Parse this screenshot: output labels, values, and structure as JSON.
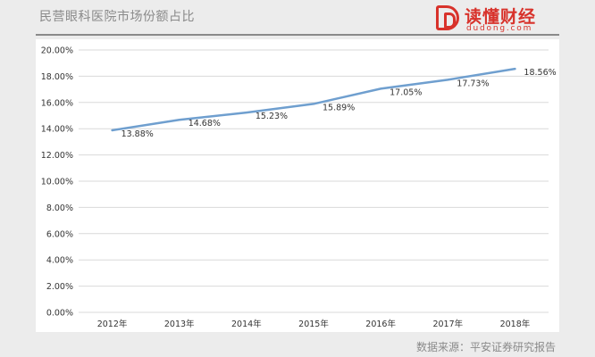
{
  "header": {
    "title": "民营眼科医院市场份额占比",
    "logo_name": "读懂财经",
    "logo_url": "dudong.com",
    "logo_icon": "d-logo-icon"
  },
  "source": "数据来源：平安证券研究报告",
  "colors": {
    "line": "#6f9fcf",
    "grid": "#d9d9d9",
    "brand": "#d8322b"
  },
  "chart_data": {
    "type": "line",
    "title": "民营眼科医院市场份额占比",
    "xlabel": "",
    "ylabel": "",
    "categories": [
      "2012年",
      "2013年",
      "2014年",
      "2015年",
      "2016年",
      "2017年",
      "2018年"
    ],
    "series": [
      {
        "values": [
          13.88,
          14.68,
          15.23,
          15.89,
          17.05,
          17.73,
          18.56
        ],
        "labels": [
          "13.88%",
          "14.68%",
          "15.23%",
          "15.89%",
          "17.05%",
          "17.73%",
          "18.56%"
        ]
      }
    ],
    "ylim": [
      0,
      20
    ],
    "yticks": [
      "0.00%",
      "2.00%",
      "4.00%",
      "6.00%",
      "8.00%",
      "10.00%",
      "12.00%",
      "14.00%",
      "16.00%",
      "18.00%",
      "20.00%"
    ],
    "grid": true,
    "legend": "none"
  }
}
